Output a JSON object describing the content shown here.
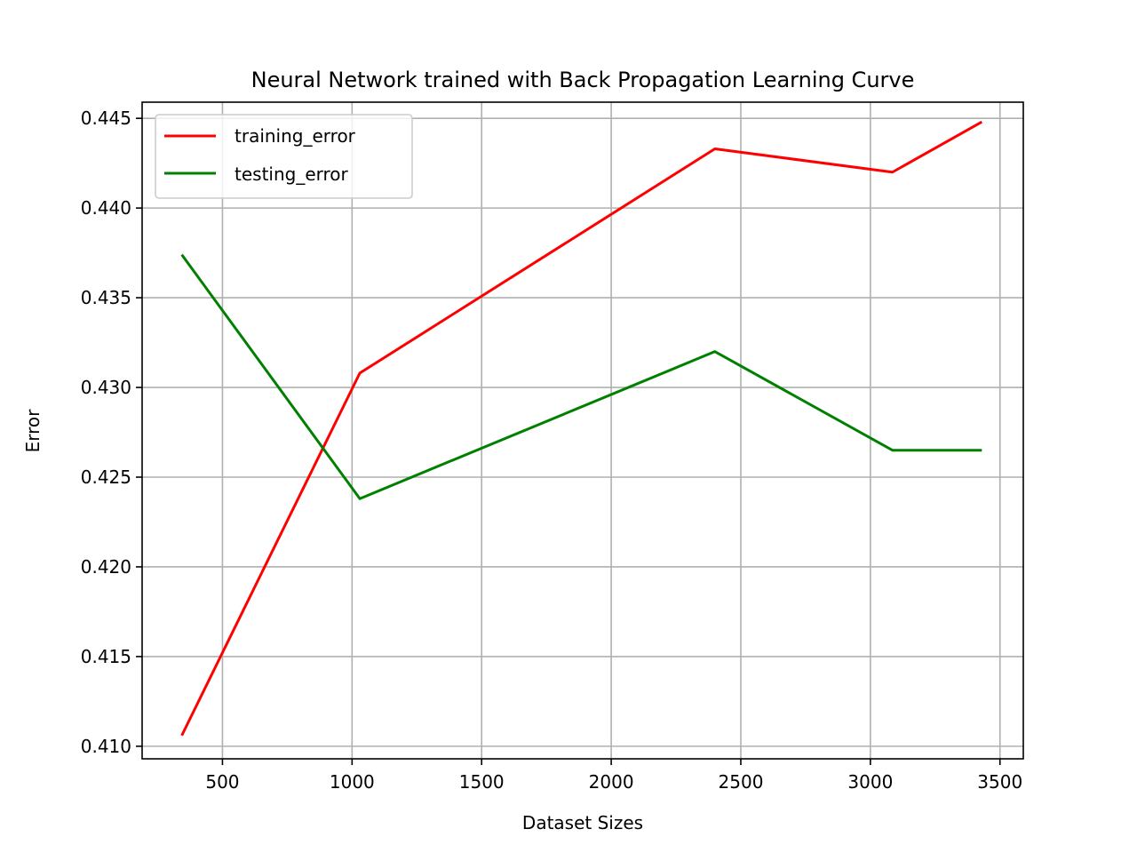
{
  "chart_data": {
    "type": "line",
    "title": "Neural Network trained with Back Propagation Learning Curve",
    "xlabel": "Dataset Sizes",
    "ylabel": "Error",
    "xlim": [
      190,
      3590
    ],
    "ylim": [
      0.4093,
      0.4459
    ],
    "xticks": [
      500,
      1000,
      1500,
      2000,
      2500,
      3000,
      3500
    ],
    "xtick_labels": [
      "500",
      "1000",
      "1500",
      "2000",
      "2500",
      "3000",
      "3500"
    ],
    "yticks": [
      0.41,
      0.415,
      0.42,
      0.425,
      0.43,
      0.435,
      0.44,
      0.445
    ],
    "ytick_labels": [
      "0.410",
      "0.415",
      "0.420",
      "0.425",
      "0.430",
      "0.435",
      "0.440",
      "0.445"
    ],
    "grid": true,
    "legend_position": "top-left",
    "series": [
      {
        "name": "training_error",
        "color": "#ff0000",
        "x": [
          343,
          1030,
          2400,
          3085,
          3430
        ],
        "y": [
          0.4106,
          0.4308,
          0.4433,
          0.442,
          0.4448
        ]
      },
      {
        "name": "testing_error",
        "color": "#008000",
        "x": [
          343,
          1030,
          2400,
          3085,
          3430
        ],
        "y": [
          0.4374,
          0.4238,
          0.432,
          0.4265,
          0.4265
        ]
      }
    ]
  }
}
